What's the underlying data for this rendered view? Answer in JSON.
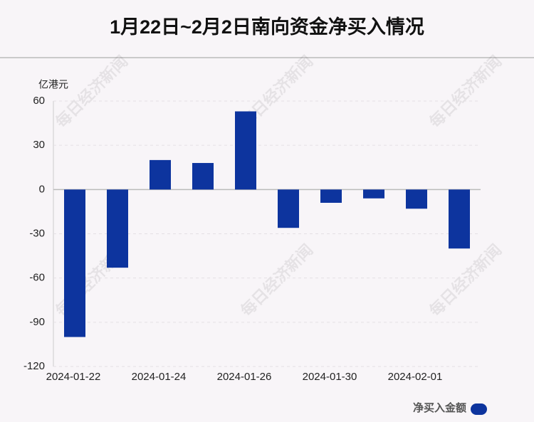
{
  "chart_data": {
    "type": "bar",
    "title": "1月22日~2月2日南向资金净买入情况",
    "y_axis_label": "亿港元",
    "categories": [
      "2024-01-22",
      null,
      "2024-01-24",
      null,
      "2024-01-26",
      null,
      "2024-01-30",
      null,
      "2024-02-01",
      null
    ],
    "series": [
      {
        "name": "净买入金额",
        "color": "#0d349e",
        "values": [
          -100,
          -53,
          20,
          18,
          53,
          -26,
          -9,
          -6,
          -13,
          -40
        ]
      }
    ],
    "ylim": [
      -120,
      60
    ],
    "yticks": [
      -120,
      -90,
      -60,
      -30,
      0,
      30,
      60
    ],
    "grid": true,
    "legend": "bottom-right",
    "watermark": "每日经济新闻"
  }
}
